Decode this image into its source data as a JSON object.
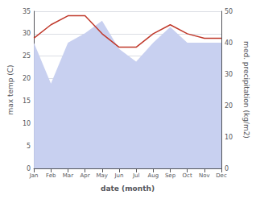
{
  "chart_data": {
    "type": "line",
    "categories": [
      "Jan",
      "Feb",
      "Mar",
      "Apr",
      "May",
      "Jun",
      "Jul",
      "Aug",
      "Sep",
      "Oct",
      "Nov",
      "Dec"
    ],
    "series": [
      {
        "type": "area",
        "color": "#c8d0f0",
        "axis": "y2",
        "values": [
          40,
          27,
          40,
          43,
          47,
          38,
          34,
          40,
          45,
          40,
          40,
          40
        ]
      },
      {
        "type": "line",
        "color": "#c0392b",
        "values": [
          29,
          32,
          34,
          34,
          30,
          27,
          27,
          30,
          32,
          30,
          29,
          29
        ]
      }
    ],
    "xlabel": "date (month)",
    "ylabel": "max temp (C)",
    "y2label": "med. precipitation (kg/m2)",
    "ylim": [
      0,
      35
    ],
    "yticks": [
      0,
      5,
      10,
      15,
      20,
      25,
      30,
      35
    ],
    "y2lim": [
      0,
      50
    ],
    "y2ticks": [
      0,
      10,
      20,
      30,
      40,
      50
    ],
    "grid": true
  }
}
